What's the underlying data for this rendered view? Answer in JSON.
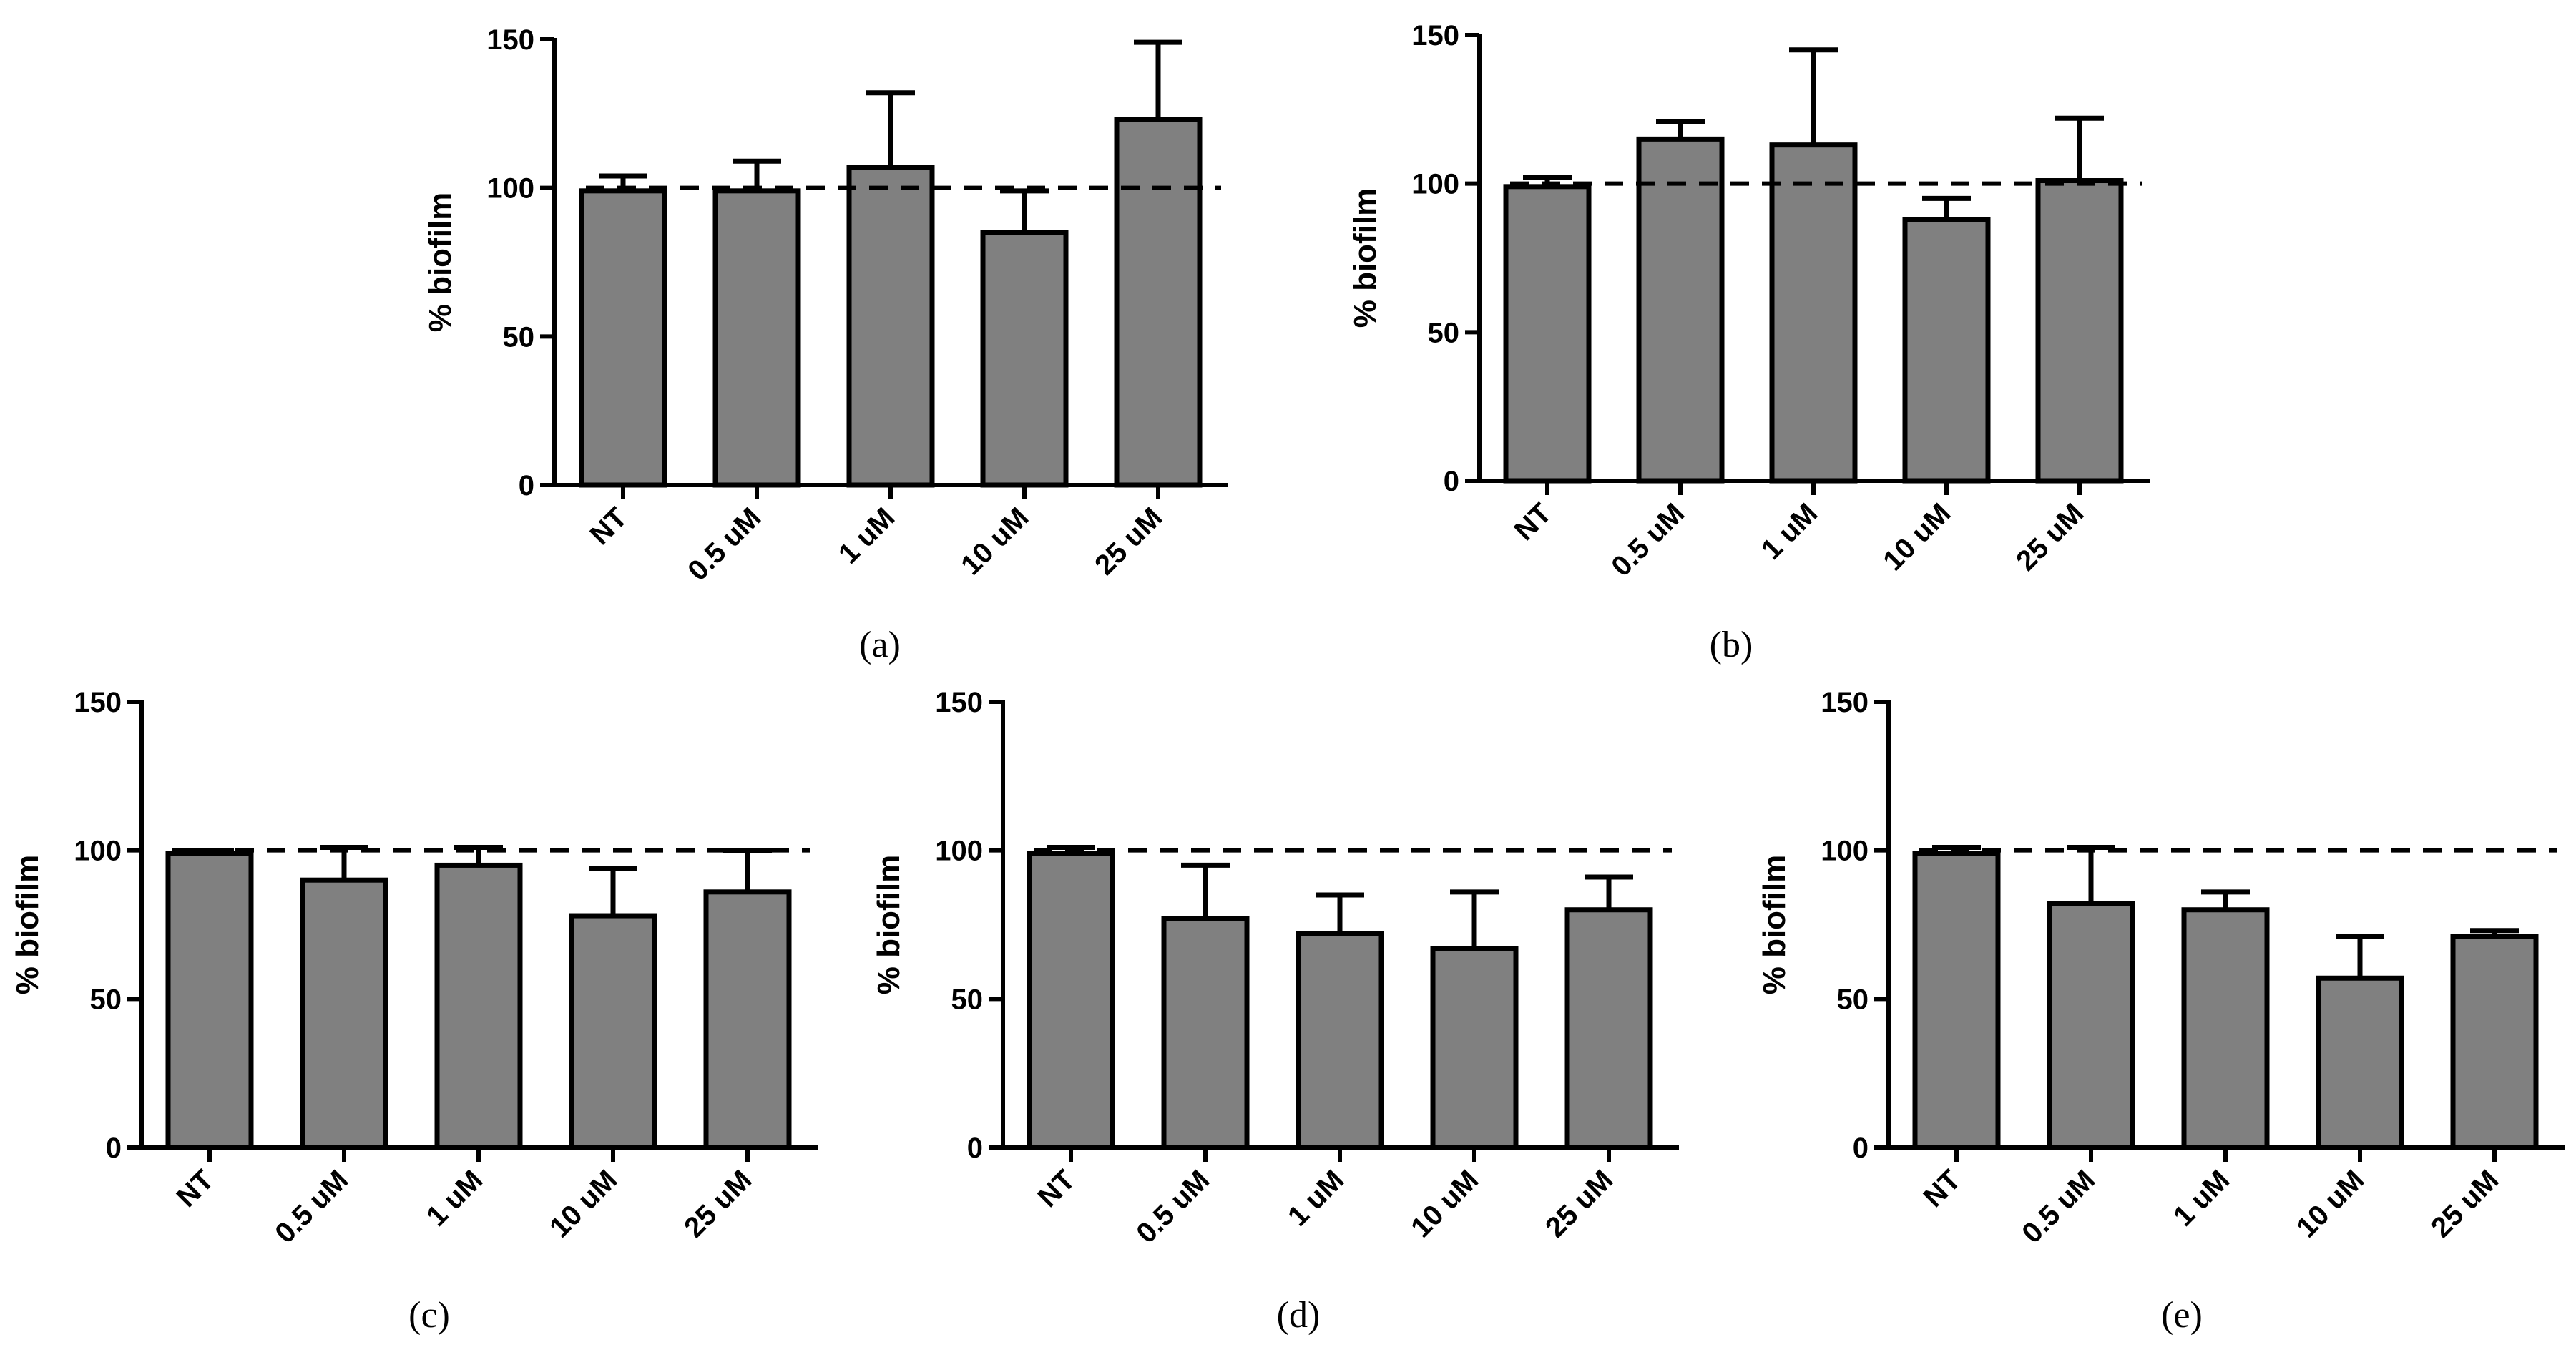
{
  "chart_data": [
    {
      "panel": "(a)",
      "type": "bar",
      "ylabel": "% biofilm",
      "xlabel": "",
      "ylim": [
        0,
        150
      ],
      "yticks": [
        "0",
        "50",
        "100",
        "150"
      ],
      "categories": [
        "NT",
        "0.5 uM",
        "1 uM",
        "10 uM",
        "25 uM"
      ],
      "values": [
        99,
        99,
        107,
        85,
        123
      ],
      "errors": [
        5,
        10,
        25,
        14,
        26
      ],
      "reference_line": 100,
      "bar_color": "#808080"
    },
    {
      "panel": "(b)",
      "type": "bar",
      "ylabel": "% biofilm",
      "xlabel": "",
      "ylim": [
        0,
        150
      ],
      "yticks": [
        "0",
        "50",
        "100",
        "150"
      ],
      "categories": [
        "NT",
        "0.5 uM",
        "1 uM",
        "10 uM",
        "25 uM"
      ],
      "values": [
        99,
        115,
        113,
        88,
        101
      ],
      "errors": [
        3,
        6,
        32,
        7,
        21
      ],
      "reference_line": 100,
      "bar_color": "#808080"
    },
    {
      "panel": "(c)",
      "type": "bar",
      "ylabel": "% biofilm",
      "xlabel": "",
      "ylim": [
        0,
        150
      ],
      "yticks": [
        "0",
        "50",
        "100",
        "150"
      ],
      "categories": [
        "NT",
        "0.5 uM",
        "1 uM",
        "10 uM",
        "25 uM"
      ],
      "values": [
        99,
        90,
        95,
        78,
        86
      ],
      "errors": [
        1,
        11,
        6,
        16,
        14
      ],
      "reference_line": 100,
      "bar_color": "#808080"
    },
    {
      "panel": "(d)",
      "type": "bar",
      "ylabel": "% biofilm",
      "xlabel": "",
      "ylim": [
        0,
        150
      ],
      "yticks": [
        "0",
        "50",
        "100",
        "150"
      ],
      "categories": [
        "NT",
        "0.5 uM",
        "1 uM",
        "10 uM",
        "25 uM"
      ],
      "values": [
        99,
        77,
        72,
        67,
        80
      ],
      "errors": [
        2,
        18,
        13,
        19,
        11
      ],
      "reference_line": 100,
      "bar_color": "#808080"
    },
    {
      "panel": "(e)",
      "type": "bar",
      "ylabel": "% biofilm",
      "xlabel": "",
      "ylim": [
        0,
        150
      ],
      "yticks": [
        "0",
        "50",
        "100",
        "150"
      ],
      "categories": [
        "NT",
        "0.5 uM",
        "1 uM",
        "10 uM",
        "25 uM"
      ],
      "values": [
        99,
        82,
        80,
        57,
        71
      ],
      "errors": [
        2,
        19,
        6,
        14,
        2
      ],
      "reference_line": 100,
      "bar_color": "#808080"
    }
  ]
}
